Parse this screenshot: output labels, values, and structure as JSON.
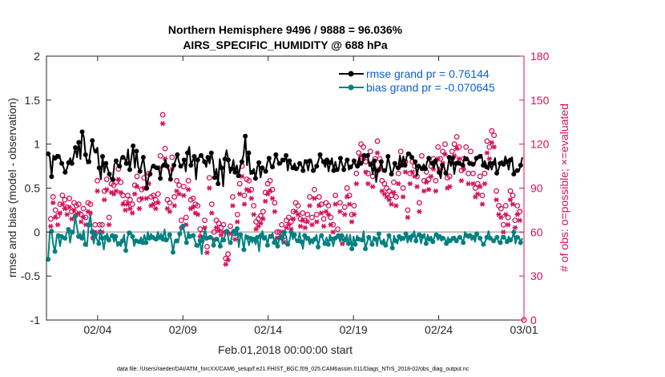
{
  "chart_data": {
    "type": "line",
    "title": "Northern Hemisphere 9496 / 9888 = 96.036%",
    "subtitle": "AIRS_SPECIFIC_HUMIDITY @ 688 hPa",
    "xlabel": "Feb.01,2018 00:00:00 start",
    "ylabel": "rmse and bias (model - observation)",
    "y2label": "# of obs: o=possible; ×=evaluated",
    "footnote": "data file: /Users/raeder/DAI/ATM_forcXX/CAM6_setup/f.e21.FHIST_BGC.f09_025.CAM6assim.011/Diags_NTrS_2018-02/obs_diag_output.nc",
    "xlim": [
      1.0,
      29.0
    ],
    "ylim": [
      -1,
      2
    ],
    "y2lim": [
      0,
      180
    ],
    "xticks": [
      {
        "value": 4,
        "label": "02/04"
      },
      {
        "value": 9,
        "label": "02/09"
      },
      {
        "value": 14,
        "label": "02/14"
      },
      {
        "value": 19,
        "label": "02/19"
      },
      {
        "value": 24,
        "label": "02/24"
      },
      {
        "value": 29,
        "label": "03/01"
      }
    ],
    "yticks": [
      {
        "value": -1,
        "label": "-1"
      },
      {
        "value": -0.5,
        "label": "-0.5"
      },
      {
        "value": 0,
        "label": "0"
      },
      {
        "value": 0.5,
        "label": "0.5"
      },
      {
        "value": 1,
        "label": "1"
      },
      {
        "value": 1.5,
        "label": "1.5"
      },
      {
        "value": 2,
        "label": "2"
      }
    ],
    "y2ticks": [
      {
        "value": 0,
        "label": "0"
      },
      {
        "value": 30,
        "label": "30"
      },
      {
        "value": 60,
        "label": "60"
      },
      {
        "value": 90,
        "label": "90"
      },
      {
        "value": 120,
        "label": "120"
      },
      {
        "value": 150,
        "label": "150"
      },
      {
        "value": 180,
        "label": "180"
      }
    ],
    "legend": [
      {
        "label": "rmse grand pr = 0.76144",
        "color": "#000000"
      },
      {
        "label": "bias grand pr = -0.070645",
        "color": "#008080"
      }
    ],
    "colors": {
      "rmse": "#000000",
      "bias": "#008080",
      "obs": "#d4145a",
      "zero": "#bbbbbb",
      "y2axis": "#d4145a"
    },
    "series": [
      {
        "name": "rmse",
        "values": [
          0.89,
          0.85,
          0.63,
          0.87,
          0.84,
          0.88,
          0.86,
          0.84,
          0.78,
          0.74,
          0.68,
          0.72,
          0.79,
          0.84,
          0.78,
          0.86,
          0.96,
          0.85,
          1.02,
          0.83,
          1.14,
          1.08,
          0.88,
          0.78,
          0.8,
          0.94,
          1.04,
          0.93,
          0.92,
          0.96,
          0.73,
          0.6,
          0.86,
          0.68,
          0.78,
          0.72,
          0.66,
          0.6,
          0.6,
          0.77,
          0.81,
          0.75,
          0.75,
          0.85,
          0.85,
          0.84,
          0.78,
          0.94,
          0.71,
          0.85,
          0.98,
          0.73,
          0.92,
          0.74,
          0.69,
          0.77,
          0.85,
          0.7,
          0.5,
          0.62,
          0.66,
          0.75,
          0.75,
          0.72,
          0.73,
          0.74,
          0.61,
          0.76,
          0.76,
          0.82,
          0.75,
          0.7,
          0.6,
          0.71,
          0.76,
          0.82,
          0.88,
          0.8,
          0.75,
          0.75,
          0.82,
          0.69,
          0.9,
          0.97,
          0.76,
          0.81,
          0.86,
          0.6,
          0.82,
          0.86,
          0.87,
          0.84,
          0.8,
          0.74,
          0.85,
          0.78,
          0.9,
          0.81,
          0.62,
          0.72,
          0.55,
          0.83,
          0.73,
          0.52,
          0.83,
          0.93,
          0.82,
          0.67,
          0.72,
          0.82,
          0.68,
          0.76,
          0.64,
          0.74,
          0.8,
          0.88,
          1.09,
          0.76,
          0.9,
          0.66,
          0.68,
          0.72,
          0.61,
          0.74,
          0.79,
          0.62,
          0.73,
          0.71,
          0.69,
          0.79,
          0.84,
          0.76,
          0.74,
          0.8,
          0.88,
          0.82,
          0.78,
          0.77,
          0.82,
          0.8,
          0.87,
          0.7,
          0.81,
          0.76,
          0.73,
          0.78,
          0.72,
          0.72,
          0.78,
          0.76,
          0.7,
          0.82,
          0.8,
          0.7,
          0.81,
          0.8,
          0.7,
          0.71,
          0.75,
          0.81,
          0.88,
          0.83,
          0.8,
          0.74,
          0.82,
          0.69,
          0.79,
          0.84,
          0.7,
          0.8,
          0.71,
          0.72,
          0.84,
          0.77,
          0.71,
          0.79,
          0.82,
          0.71,
          0.74,
          0.76,
          0.81,
          0.75,
          0.75,
          0.85,
          0.78,
          0.79,
          0.87,
          0.85,
          0.87,
          0.75,
          0.77,
          0.66,
          0.81,
          0.57,
          0.7,
          0.72,
          0.8,
          0.69,
          0.7,
          0.72,
          0.86,
          0.76,
          0.66,
          0.7,
          0.78,
          0.73,
          0.73,
          0.87,
          0.76,
          0.86,
          0.76,
          0.86,
          0.89,
          0.9,
          0.85,
          0.82,
          0.8,
          0.64,
          0.75,
          0.73,
          0.72,
          0.77,
          0.72,
          0.8,
          0.84,
          0.78,
          0.78,
          0.73,
          0.81,
          0.76,
          0.68,
          0.61,
          0.76,
          0.74,
          0.67,
          0.7,
          0.85,
          0.75,
          0.84,
          0.66,
          0.78,
          0.81,
          0.78,
          0.76,
          0.76,
          0.86,
          0.83,
          0.84,
          0.78,
          0.78,
          0.77,
          0.77,
          0.84,
          0.85,
          0.86,
          0.88,
          0.76,
          0.81,
          0.74,
          0.71,
          0.78,
          0.71,
          0.78,
          0.84,
          0.67,
          0.71,
          0.78,
          0.81,
          0.77,
          0.86,
          0.8,
          0.71,
          0.82,
          0.85,
          0.66,
          0.7,
          0.7,
          0.69,
          0.76,
          0.85
        ]
      },
      {
        "name": "bias",
        "values": [
          -0.31,
          0.0,
          0.01,
          -0.14,
          -0.22,
          -0.06,
          -0.04,
          -0.16,
          -0.05,
          -0.08,
          -0.07,
          -0.01,
          0.03,
          -0.12,
          0.0,
          -0.02,
          0.18,
          0.07,
          -0.05,
          -0.02,
          -0.07,
          0.02,
          -0.14,
          -0.16,
          0.08,
          0.19,
          0.0,
          -0.13,
          -0.03,
          -0.09,
          -0.13,
          0.03,
          -0.07,
          -0.2,
          -0.06,
          -0.02,
          -0.09,
          -0.05,
          -0.04,
          -0.11,
          -0.05,
          -0.16,
          -0.13,
          -0.16,
          -0.1,
          -0.03,
          -0.21,
          -0.06,
          -0.01,
          0.0,
          -0.05,
          -0.16,
          -0.1,
          -0.12,
          -0.11,
          -0.06,
          -0.12,
          -0.03,
          -0.12,
          0.0,
          -0.07,
          -0.02,
          -0.06,
          -0.09,
          -0.08,
          0.0,
          -0.06,
          -0.02,
          -0.08,
          0.03,
          -0.09,
          -0.09,
          -0.03,
          -0.09,
          -0.23,
          -0.1,
          -0.1,
          -0.12,
          -0.02,
          0.04,
          0.07,
          -0.03,
          -0.12,
          0.0,
          -0.05,
          -0.03,
          -0.04,
          -0.1,
          -0.15,
          -0.17,
          -0.1,
          -0.25,
          -0.06,
          0.03,
          -0.07,
          -0.08,
          -0.06,
          -0.05,
          -0.15,
          -0.09,
          -0.08,
          -0.1,
          -0.16,
          -0.06,
          -0.09,
          -0.03,
          0.01,
          -0.1,
          -0.12,
          -0.04,
          0.01,
          -0.04,
          0.04,
          -0.17,
          -0.03,
          -0.07,
          -0.2,
          -0.03,
          -0.06,
          -0.15,
          -0.07,
          -0.12,
          -0.08,
          -0.14,
          -0.06,
          -0.22,
          -0.04,
          0.01,
          -0.07,
          -0.04,
          -0.15,
          -0.03,
          -0.05,
          -0.01,
          -0.12,
          -0.07,
          -0.16,
          -0.08,
          -0.05,
          -0.13,
          0.0,
          -0.05,
          -0.14,
          -0.1,
          0.0,
          -0.08,
          -0.03,
          -0.11,
          -0.1,
          -0.01,
          -0.11,
          -0.19,
          -0.04,
          -0.09,
          -0.07,
          -0.14,
          -0.1,
          -0.13,
          -0.08,
          -0.03,
          -0.17,
          -0.06,
          -0.04,
          -0.09,
          -0.13,
          -0.06,
          -0.14,
          -0.03,
          -0.08,
          -0.16,
          -0.07,
          -0.08,
          -0.04,
          -0.11,
          -0.04,
          -0.12,
          -0.09,
          -0.03,
          -0.13,
          -0.03,
          -0.19,
          -0.05,
          -0.14,
          -0.04,
          -0.08,
          -0.08,
          -0.09,
          0.01,
          -0.19,
          -0.12,
          -0.06,
          -0.09,
          -0.14,
          -0.05,
          -0.08,
          -0.16,
          -0.02,
          -0.11,
          -0.12,
          -0.08,
          -0.15,
          -0.1,
          -0.04,
          -0.08,
          -0.18,
          -0.04,
          -0.1,
          -0.13,
          -0.05,
          -0.1,
          -0.07,
          -0.09,
          -0.02,
          -0.12,
          -0.06,
          -0.11,
          -0.04,
          0.01,
          -0.1,
          -0.02,
          -0.03,
          -0.13,
          -0.05,
          -0.02,
          -0.13,
          -0.03,
          -0.08,
          -0.05,
          -0.11,
          -0.05,
          -0.03,
          -0.09,
          -0.05,
          -0.1,
          -0.07,
          -0.07,
          -0.13,
          -0.06,
          -0.1,
          -0.11,
          -0.07,
          -0.05,
          -0.1,
          -0.06,
          -0.06,
          -0.08,
          -0.12,
          0.0,
          -0.04,
          -0.07,
          -0.04,
          -0.09,
          -0.06,
          -0.11,
          -0.02,
          -0.05,
          -0.07,
          -0.11,
          -0.14,
          -0.11,
          -0.06,
          0.01,
          -0.07,
          -0.07,
          -0.1,
          -0.08,
          -0.06,
          -0.12,
          -0.12,
          -0.04,
          -0.06,
          -0.07,
          -0.11,
          -0.05,
          -0.09,
          -0.07,
          0.0,
          -0.13,
          -0.06,
          -0.05,
          -0.12,
          -0.07
        ]
      },
      {
        "name": "obs_possible",
        "axis": "y2",
        "values": [
          69,
          84,
          75,
          71,
          79,
          85,
          82,
          77,
          83,
          74,
          80,
          78,
          79,
          72,
          76,
          70,
          80,
          79,
          60,
          65,
          95,
          65,
          65,
          88,
          96,
          70,
          93,
          92,
          94,
          103,
          94,
          85,
          80,
          85,
          82,
          79,
          92,
          98,
          82,
          89,
          97,
          90,
          100,
          84,
          85,
          82,
          86,
          112,
          140,
          117,
          82,
          80,
          111,
          84,
          95,
          92,
          68,
          91,
          70,
          95,
          82,
          83,
          79,
          78,
          62,
          59,
          68,
          50,
          97,
          79,
          60,
          68,
          66,
          63,
          65,
          42,
          45,
          64,
          84,
          59,
          72,
          93,
          105,
          85,
          96,
          95,
          89,
          78,
          67,
          69,
          71,
          74,
          87,
          93,
          95,
          89,
          80,
          60,
          60,
          65,
          57,
          68,
          70,
          67,
          74,
          80,
          78,
          69,
          73,
          68,
          72,
          84,
          70,
          89,
          72,
          84,
          79,
          69,
          80,
          78,
          70,
          65,
          85,
          62,
          80,
          56,
          77,
          90,
          85,
          72,
          78,
          100,
          114,
          120,
          118,
          108,
          100,
          115,
          98,
          110,
          122,
          110,
          95,
          93,
          90,
          88,
          85,
          94,
          84,
          100,
          115,
          90,
          108,
          75,
          100,
          108,
          105,
          98,
          80,
          112,
          95,
          101,
          96,
          105,
          110,
          95,
          118,
          110,
          115,
          120,
          97,
          98,
          115,
          120,
          125,
          118,
          102,
          110,
          118,
          100,
          115,
          100,
          90,
          93,
          98,
          85,
          100,
          122,
          118,
          129,
          126,
          88,
          78,
          76,
          65,
          78,
          70,
          88,
          85,
          68,
          78,
          74
        ]
      },
      {
        "name": "obs_evaluated",
        "axis": "y2",
        "values": [
          64,
          80,
          70,
          65,
          73,
          79,
          76,
          72,
          77,
          69,
          75,
          72,
          73,
          67,
          70,
          65,
          74,
          73,
          56,
          60,
          88,
          60,
          60,
          82,
          89,
          65,
          87,
          86,
          88,
          96,
          87,
          79,
          75,
          79,
          76,
          73,
          86,
          91,
          76,
          83,
          90,
          83,
          93,
          78,
          79,
          76,
          80,
          104,
          134,
          110,
          76,
          74,
          103,
          78,
          88,
          86,
          63,
          85,
          65,
          89,
          76,
          77,
          73,
          72,
          57,
          54,
          63,
          46,
          90,
          73,
          55,
          63,
          61,
          58,
          60,
          38,
          41,
          59,
          78,
          55,
          67,
          86,
          98,
          79,
          89,
          88,
          83,
          72,
          62,
          64,
          66,
          69,
          81,
          86,
          88,
          83,
          74,
          56,
          56,
          60,
          53,
          63,
          65,
          62,
          69,
          74,
          72,
          64,
          68,
          63,
          67,
          78,
          65,
          83,
          67,
          78,
          73,
          64,
          74,
          72,
          65,
          60,
          79,
          57,
          74,
          52,
          72,
          84,
          79,
          67,
          72,
          93,
          107,
          112,
          110,
          101,
          93,
          107,
          91,
          103,
          114,
          103,
          88,
          86,
          84,
          82,
          79,
          87,
          78,
          93,
          107,
          84,
          101,
          70,
          93,
          101,
          98,
          91,
          74,
          104,
          88,
          94,
          89,
          98,
          103,
          88,
          110,
          103,
          107,
          113,
          90,
          91,
          107,
          112,
          117,
          110,
          95,
          103,
          110,
          93,
          107,
          93,
          84,
          86,
          91,
          79,
          93,
          114,
          110,
          121,
          118,
          82,
          72,
          70,
          60,
          72,
          65,
          82,
          79,
          63,
          72,
          68
        ]
      }
    ]
  }
}
